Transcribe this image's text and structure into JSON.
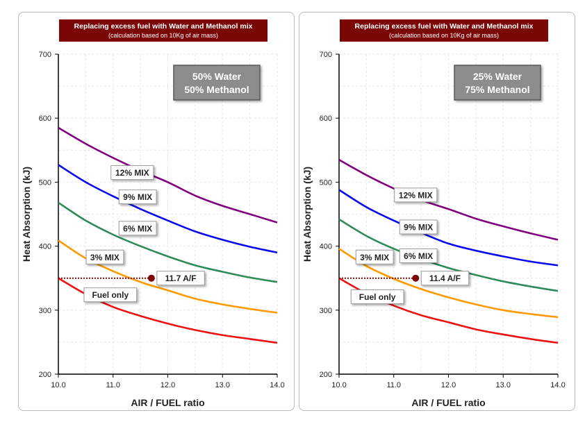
{
  "charts": [
    {
      "id": "left",
      "header": {
        "title": "Replacing excess fuel with Water and Methanol mix",
        "subtitle": "(calculation based on 10Kg of air mass)"
      },
      "mix_box": {
        "line1": "50% Water",
        "line2": "50% Methanol"
      },
      "marker": {
        "x": 11.7,
        "y": 350,
        "label": "11.7 A/F"
      },
      "chart_data": {
        "type": "line",
        "xlabel": "AIR / FUEL ratio",
        "ylabel": "Heat Absorption (kJ)",
        "xlim": [
          10,
          14
        ],
        "ylim": [
          200,
          700
        ],
        "xticks": [
          "10.0",
          "11.0",
          "12.0",
          "13.0",
          "14.0"
        ],
        "yticks": [
          "200",
          "300",
          "400",
          "500",
          "600",
          "700"
        ],
        "grid": true,
        "series": [
          {
            "name": "12% MIX",
            "color": "#800080",
            "x": [
              10,
              10.5,
              11,
              11.5,
              12,
              12.5,
              13,
              13.5,
              14
            ],
            "y": [
              585,
              560,
              538,
              518,
              500,
              479,
              463,
              450,
              437
            ],
            "label_at": [
              11.35,
              515
            ]
          },
          {
            "name": "9% MIX",
            "color": "#0a0aee",
            "x": [
              10,
              10.5,
              11,
              11.5,
              12,
              12.5,
              13,
              13.5,
              14
            ],
            "y": [
              527,
              500,
              478,
              458,
              440,
              423,
              410,
              399,
              390
            ],
            "label_at": [
              11.45,
              477
            ]
          },
          {
            "name": "6% MIX",
            "color": "#2e8b57",
            "x": [
              10,
              10.5,
              11,
              11.5,
              12,
              12.5,
              13,
              13.5,
              14
            ],
            "y": [
              468,
              440,
              418,
              400,
              384,
              370,
              360,
              351,
              344
            ],
            "label_at": [
              11.45,
              428
            ]
          },
          {
            "name": "3% MIX",
            "color": "#ff9900",
            "x": [
              10,
              10.5,
              11,
              11.5,
              12,
              12.5,
              13,
              13.5,
              14
            ],
            "y": [
              409,
              381,
              361,
              344,
              331,
              318,
              309,
              302,
              296
            ],
            "label_at": [
              10.85,
              383
            ]
          },
          {
            "name": "Fuel only",
            "color": "#ee1111",
            "x": [
              10,
              10.5,
              11,
              11.5,
              12,
              12.5,
              13,
              13.5,
              14
            ],
            "y": [
              350,
              325,
              305,
              291,
              279,
              269,
              261,
              255,
              249
            ],
            "label_at": [
              10.95,
              324
            ]
          }
        ]
      }
    },
    {
      "id": "right",
      "header": {
        "title": "Replacing excess fuel with Water and Methanol mix",
        "subtitle": "(calculation based on 10Kg of air mass)"
      },
      "mix_box": {
        "line1": "25% Water",
        "line2": "75% Methanol"
      },
      "marker": {
        "x": 11.4,
        "y": 350,
        "label": "11.4 A/F"
      },
      "chart_data": {
        "type": "line",
        "xlabel": "AIR / FUEL ratio",
        "ylabel": "Heat Absorption (kJ)",
        "xlim": [
          10,
          14
        ],
        "ylim": [
          200,
          700
        ],
        "xticks": [
          "10.0",
          "11.0",
          "12.0",
          "13.0",
          "14.0"
        ],
        "yticks": [
          "200",
          "300",
          "400",
          "500",
          "600",
          "700"
        ],
        "grid": true,
        "series": [
          {
            "name": "12% MIX",
            "color": "#800080",
            "x": [
              10,
              10.5,
              11,
              11.5,
              12,
              12.5,
              13,
              13.5,
              14
            ],
            "y": [
              535,
              511,
              490,
              472,
              458,
              443,
              431,
              420,
              410
            ],
            "label_at": [
              11.4,
              480
            ]
          },
          {
            "name": "9% MIX",
            "color": "#0a0aee",
            "x": [
              10,
              10.5,
              11,
              11.5,
              12,
              12.5,
              13,
              13.5,
              14
            ],
            "y": [
              488,
              461,
              440,
              421,
              404,
              393,
              384,
              376,
              370
            ],
            "label_at": [
              11.45,
              430
            ]
          },
          {
            "name": "6% MIX",
            "color": "#2e8b57",
            "x": [
              10,
              10.5,
              11,
              11.5,
              12,
              12.5,
              13,
              13.5,
              14
            ],
            "y": [
              442,
              416,
              396,
              380,
              366,
              355,
              345,
              337,
              330
            ],
            "label_at": [
              11.45,
              385
            ]
          },
          {
            "name": "3% MIX",
            "color": "#ff9900",
            "x": [
              10,
              10.5,
              11,
              11.5,
              12,
              12.5,
              13,
              13.5,
              14
            ],
            "y": [
              396,
              369,
              349,
              333,
              320,
              309,
              300,
              294,
              289
            ],
            "label_at": [
              10.65,
              383
            ]
          },
          {
            "name": "Fuel only",
            "color": "#ee1111",
            "x": [
              10,
              10.5,
              11,
              11.5,
              12,
              12.5,
              13,
              13.5,
              14
            ],
            "y": [
              350,
              326,
              307,
              292,
              281,
              270,
              262,
              255,
              249
            ],
            "label_at": [
              10.7,
              321
            ]
          }
        ]
      }
    }
  ]
}
